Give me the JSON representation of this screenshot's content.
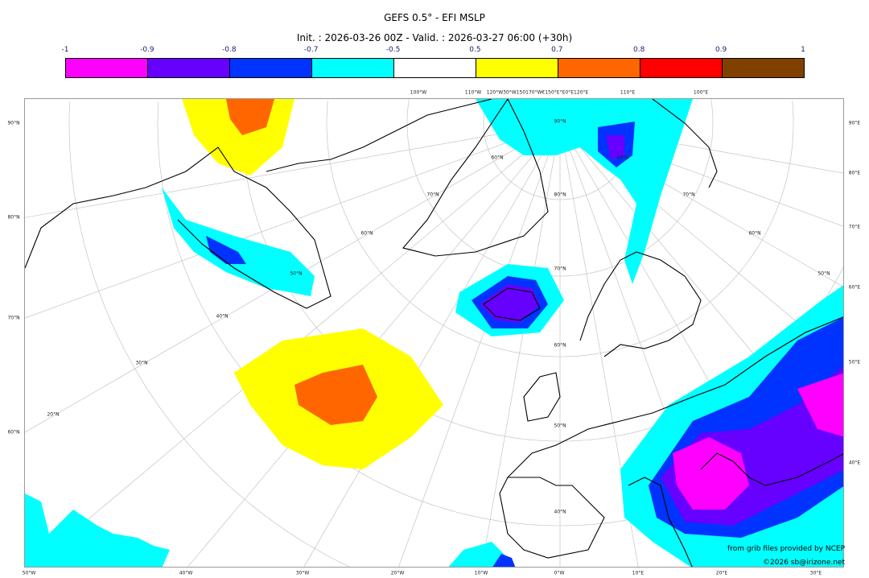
{
  "title": "GEFS 0.5° - EFI MSLP",
  "subtitle": "Init. : 2026-03-26 00Z - Valid. : 2026-03-27 06:00 (+30h)",
  "colorbar": {
    "ticks": [
      "-1",
      "-0.9",
      "-0.8",
      "-0.7",
      "-0.5",
      "0.5",
      "0.7",
      "0.8",
      "0.9",
      "1"
    ],
    "colors": [
      "#ff00ff",
      "#6600ff",
      "#0033ff",
      "#00ffff",
      "#ffffff",
      "#ffff00",
      "#ff6600",
      "#ff0000",
      "#804000"
    ]
  },
  "labels": {
    "top": [
      "100°W",
      "110°W",
      "120°W30°W150170°W€150°E°E0°E120°E",
      "110°E",
      "100°E"
    ],
    "left": [
      "90°N",
      "80°N",
      "70°N",
      "60°N"
    ],
    "right": [
      "90°E",
      "80°E",
      "70°E",
      "60°E",
      "50°E",
      "40°E"
    ],
    "bottom": [
      "50°W",
      "40°W",
      "30°W",
      "20°W",
      "10°W",
      "0°W",
      "10°E",
      "20°E",
      "30°E"
    ],
    "interior": [
      "90°N",
      "80°N",
      "70°N",
      "60°N",
      "50°N",
      "40°N",
      "70°N",
      "60°N",
      "50°N",
      "40°N",
      "30°N",
      "20°N",
      "70°N",
      "60°N",
      "50°N",
      "60°N",
      "40°N"
    ]
  },
  "credits": {
    "source": "from grib files provided by NCEP",
    "copyright": "©2026 sb@irizone.net"
  }
}
